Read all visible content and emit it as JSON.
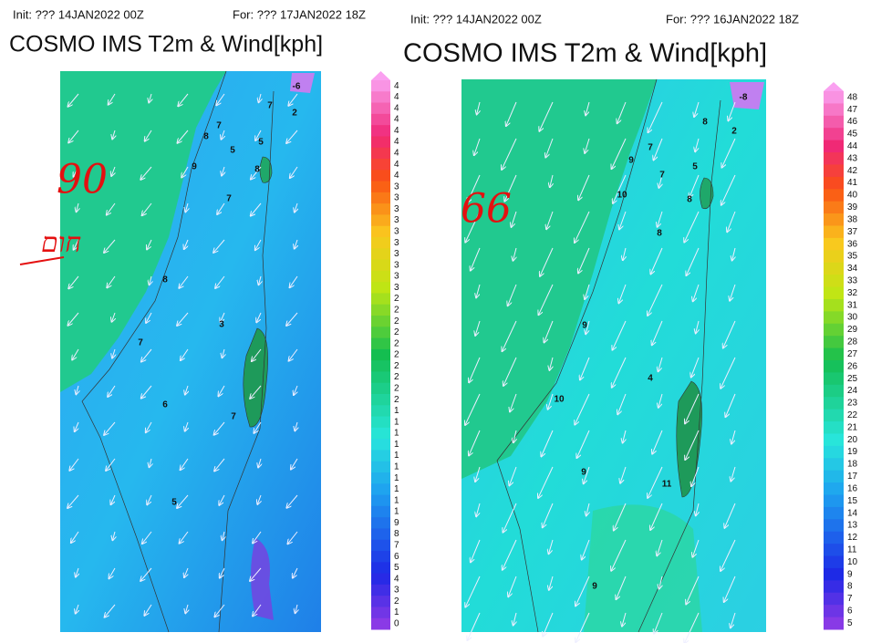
{
  "panels": [
    {
      "init": "Init: ??? 14JAN2022 00Z",
      "valid": "For: ??? 17JAN2022 18Z",
      "title": "COSMO IMS T2m & Wind[kph]",
      "map_labels": [
        "-6",
        "7",
        "2",
        "7",
        "8",
        "5",
        "5",
        "8",
        "9",
        "7",
        "8",
        "3",
        "7",
        "6",
        "7",
        "5"
      ],
      "colorbar_labels": [
        "4",
        "4",
        "4",
        "4",
        "4",
        "4",
        "4",
        "4",
        "4",
        "3",
        "3",
        "3",
        "3",
        "3",
        "3",
        "3",
        "3",
        "3",
        "3",
        "2",
        "2",
        "2",
        "2",
        "2",
        "2",
        "2",
        "2",
        "2",
        "2",
        "1",
        "1",
        "1",
        "1",
        "1",
        "1",
        "1",
        "1",
        "1",
        "1",
        "9",
        "8",
        "7",
        "6",
        "5",
        "4",
        "3",
        "2",
        "1",
        "0"
      ],
      "handwriting": [
        "90",
        "חום"
      ]
    },
    {
      "init": "Init: ??? 14JAN2022 00Z",
      "valid": "For: ??? 16JAN2022 18Z",
      "title": "COSMO IMS T2m & Wind[kph]",
      "map_labels": [
        "-8",
        "8",
        "2",
        "7",
        "9",
        "5",
        "7",
        "10",
        "8",
        "8",
        "9",
        "4",
        "10",
        "9",
        "11",
        "9"
      ],
      "colorbar_labels": [
        "48",
        "47",
        "46",
        "45",
        "44",
        "43",
        "42",
        "41",
        "40",
        "39",
        "38",
        "37",
        "36",
        "35",
        "34",
        "33",
        "32",
        "31",
        "30",
        "29",
        "28",
        "27",
        "26",
        "25",
        "24",
        "23",
        "22",
        "21",
        "20",
        "19",
        "18",
        "17",
        "16",
        "15",
        "14",
        "13",
        "12",
        "11",
        "10",
        "9",
        "8",
        "7",
        "6",
        "5"
      ],
      "handwriting": [
        "66"
      ]
    }
  ]
}
